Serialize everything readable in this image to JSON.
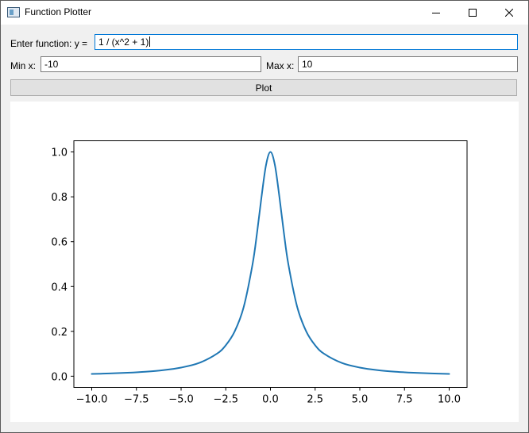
{
  "window": {
    "title": "Function Plotter",
    "icon": "app-window-icon",
    "controls": [
      "minimize-icon",
      "maximize-icon",
      "close-icon"
    ]
  },
  "form": {
    "function_label": "Enter function: y =",
    "function_value": "1 / (x^2 + 1)",
    "min_label": "Min x:",
    "min_value": "-10",
    "max_label": "Max x:",
    "max_value": "10",
    "plot_label": "Plot"
  },
  "chart_data": {
    "type": "line",
    "function": "1 / (x^2 + 1)",
    "x_range": [
      -10,
      10
    ],
    "xlim": [
      -11,
      11
    ],
    "ylim": [
      -0.05,
      1.05
    ],
    "xticks": [
      -10.0,
      -7.5,
      -5.0,
      -2.5,
      0.0,
      2.5,
      5.0,
      7.5,
      10.0
    ],
    "xtick_labels": [
      "−10.0",
      "−7.5",
      "−5.0",
      "−2.5",
      "0.0",
      "2.5",
      "5.0",
      "7.5",
      "10.0"
    ],
    "yticks": [
      0.0,
      0.2,
      0.4,
      0.6,
      0.8,
      1.0
    ],
    "ytick_labels": [
      "0.0",
      "0.2",
      "0.4",
      "0.6",
      "0.8",
      "1.0"
    ],
    "series": [
      {
        "color": "#1f77b4",
        "x": [
          -10,
          -9,
          -8,
          -7,
          -6,
          -5,
          -4,
          -3,
          -2.5,
          -2,
          -1.5,
          -1,
          -0.75,
          -0.5,
          -0.25,
          0,
          0.25,
          0.5,
          0.75,
          1,
          1.5,
          2,
          2.5,
          3,
          4,
          5,
          6,
          7,
          8,
          9,
          10
        ],
        "y": [
          0.0099,
          0.0122,
          0.0154,
          0.02,
          0.027,
          0.0385,
          0.0588,
          0.1,
          0.1379,
          0.2,
          0.3077,
          0.5,
          0.64,
          0.8,
          0.9412,
          1.0,
          0.9412,
          0.8,
          0.64,
          0.5,
          0.3077,
          0.2,
          0.1379,
          0.1,
          0.0588,
          0.0385,
          0.027,
          0.02,
          0.0154,
          0.0122,
          0.0099
        ]
      }
    ],
    "grid": false,
    "title": "",
    "xlabel": "",
    "ylabel": ""
  }
}
